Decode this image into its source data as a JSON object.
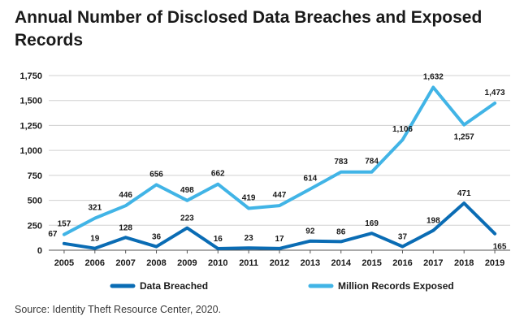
{
  "title": "Annual Number of Disclosed Data Breaches and Exposed Records",
  "source": "Source: Identity Theft Resource Center, 2020.",
  "colors": {
    "dark_blue": "#0a6cb4",
    "light_blue": "#41b4e6",
    "grid": "#d0d0d0",
    "axis": "#555555"
  },
  "chart_data": {
    "type": "line",
    "title": "Annual Number of Disclosed Data Breaches and Exposed Records",
    "x": [
      "2005",
      "2006",
      "2007",
      "2008",
      "2009",
      "2010",
      "2011",
      "2012",
      "2013",
      "2014",
      "2015",
      "2016",
      "2017",
      "2018",
      "2019"
    ],
    "ylim": [
      0,
      1750
    ],
    "yticks": [
      0,
      250,
      500,
      750,
      1000,
      1250,
      1500,
      1750
    ],
    "ytick_labels": [
      "0",
      "250",
      "500",
      "750",
      "1,000",
      "1,250",
      "1,500",
      "1,750"
    ],
    "grid": "horizontal",
    "legend_position": "bottom",
    "series": [
      {
        "name": "Data Breached",
        "color": "#0a6cb4",
        "values": [
          67,
          19,
          128,
          36,
          223,
          16,
          23,
          17,
          92,
          86,
          169,
          37,
          198,
          471,
          165
        ],
        "labels": [
          "67",
          "19",
          "128",
          "36",
          "223",
          "16",
          "23",
          "17",
          "92",
          "86",
          "169",
          "37",
          "198",
          "471",
          "165"
        ]
      },
      {
        "name": "Million Records Exposed",
        "color": "#41b4e6",
        "values": [
          157,
          321,
          446,
          656,
          498,
          662,
          419,
          447,
          614,
          783,
          784,
          1106,
          1632,
          1257,
          1473
        ],
        "labels": [
          "157",
          "321",
          "446",
          "656",
          "498",
          "662",
          "419",
          "447",
          "614",
          "783",
          "784",
          "1,106",
          "1,632",
          "1,257",
          "1,473"
        ]
      }
    ]
  }
}
